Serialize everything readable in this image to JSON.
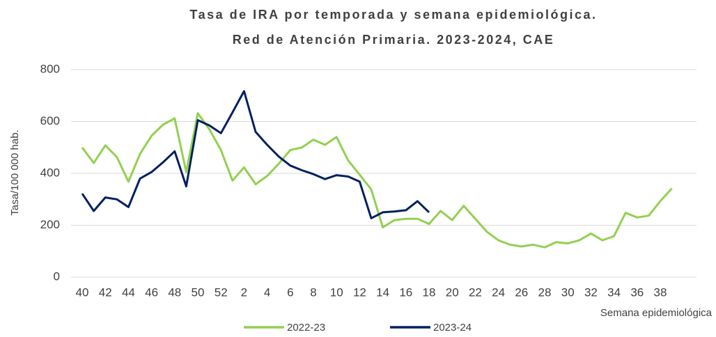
{
  "chart_data": {
    "type": "line",
    "title": [
      "Tasa de IRA por temporada y semana epidemiológica.",
      "Red de Atención Primaria. 2023-2024, CAE"
    ],
    "x_label": "Semana epidemiológica",
    "y_label": "Tasa/100 000 hab.",
    "categories": [
      "40",
      null,
      "42",
      null,
      "44",
      null,
      "46",
      null,
      "48",
      null,
      "50",
      null,
      "52",
      null,
      "2",
      null,
      "4",
      null,
      "6",
      null,
      "8",
      null,
      "10",
      null,
      "12",
      null,
      "14",
      null,
      "16",
      null,
      "18",
      null,
      "20",
      null,
      "22",
      null,
      "24",
      null,
      "26",
      null,
      "28",
      null,
      "30",
      null,
      "32",
      null,
      "34",
      null,
      "36",
      null,
      "38",
      null
    ],
    "series": [
      {
        "name": "2022-23",
        "color": "#92d050",
        "values": [
          500,
          440,
          508,
          463,
          368,
          475,
          545,
          588,
          612,
          405,
          632,
          570,
          490,
          372,
          423,
          358,
          390,
          437,
          490,
          500,
          530,
          510,
          540,
          450,
          395,
          338,
          192,
          220,
          225,
          225,
          205,
          255,
          220,
          275,
          225,
          175,
          142,
          125,
          118,
          125,
          115,
          135,
          130,
          142,
          168,
          142,
          158,
          248,
          230,
          237,
          293,
          342
        ]
      },
      {
        "name": "2023-24",
        "color": "#002060",
        "values": [
          322,
          255,
          307,
          300,
          270,
          380,
          405,
          443,
          485,
          350,
          605,
          585,
          555,
          635,
          717,
          560,
          510,
          465,
          430,
          412,
          397,
          378,
          393,
          388,
          368,
          227,
          250,
          253,
          258,
          293,
          250,
          null,
          null,
          null,
          null,
          null,
          null,
          null,
          null,
          null,
          null,
          null,
          null,
          null,
          null,
          null,
          null,
          null,
          null,
          null,
          null,
          null
        ]
      }
    ],
    "ylim": [
      0,
      800
    ],
    "yticks": [
      0,
      200,
      400,
      600,
      800
    ],
    "grid": true,
    "legend": "bottom"
  }
}
